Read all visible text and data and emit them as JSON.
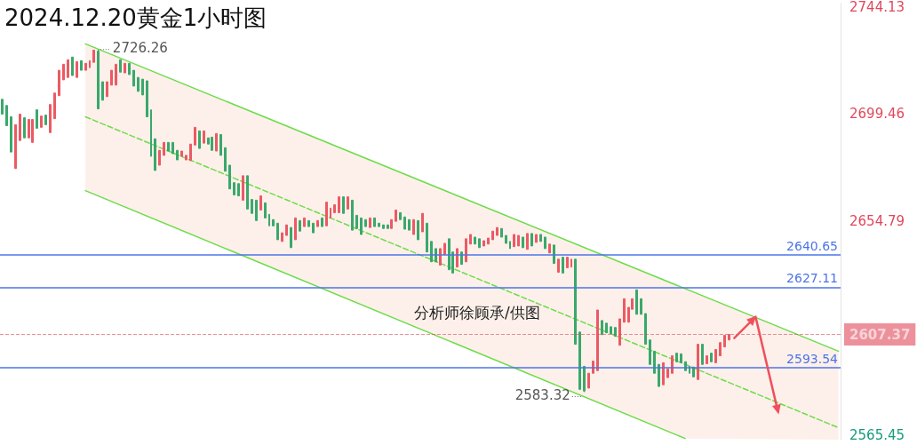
{
  "chart_data": {
    "type": "candlestick",
    "title": "2024.12.20黄金1小时图",
    "categories": [
      null,
      null,
      null,
      null,
      null,
      null,
      null,
      null,
      null,
      null,
      null,
      null,
      null,
      null,
      null,
      null,
      null,
      null,
      null,
      null,
      null,
      null,
      null,
      null,
      null,
      null,
      null,
      null,
      null,
      null,
      null,
      null,
      null,
      null,
      null,
      null,
      null,
      null,
      null,
      null,
      null,
      null,
      null,
      null,
      null,
      null,
      null,
      null,
      null,
      null,
      null,
      null,
      null,
      null,
      null,
      null,
      null,
      null,
      null,
      null,
      null,
      null,
      null,
      null,
      null,
      null,
      null,
      null,
      null,
      null,
      null,
      null,
      null,
      null,
      null,
      null,
      null,
      null,
      null,
      null,
      null,
      null,
      null,
      null,
      null,
      null,
      null,
      null,
      null,
      null,
      null,
      null,
      null,
      null,
      null,
      null,
      null,
      null,
      null,
      null,
      null,
      null,
      null,
      null,
      null,
      null,
      null,
      null,
      null,
      null,
      null,
      null,
      null,
      null,
      null,
      null,
      null,
      null,
      null,
      null,
      null,
      null,
      null,
      null,
      null,
      null,
      null,
      null,
      null,
      null,
      null,
      null,
      null,
      null,
      null,
      null,
      null,
      null,
      null,
      null,
      null,
      null,
      null,
      null,
      null,
      null,
      null,
      null,
      null,
      null,
      null,
      null,
      null,
      null,
      null,
      null,
      null,
      null,
      null,
      null,
      null,
      null,
      null,
      null,
      null,
      null,
      null,
      null,
      null,
      null,
      null,
      null,
      null,
      null,
      null,
      null,
      null,
      null,
      null,
      null,
      null,
      null,
      null,
      null,
      null,
      null,
      null,
      null,
      null,
      null,
      null,
      null
    ],
    "series": [
      {
        "ohlc": [
          [
            2705.5,
            2705.5,
            2699.3,
            2699.3
          ],
          [
            2702.9,
            2702.9,
            2694.5,
            2694.5
          ],
          [
            2698.2,
            2698.2,
            2683.5,
            2683.5
          ],
          [
            2676.6,
            2694.9,
            2676.6,
            2694.9
          ],
          [
            2688.3,
            2699.3,
            2688.3,
            2699.3
          ],
          [
            2697.8,
            2697.8,
            2689.4,
            2689.4
          ],
          [
            2689.4,
            2697.1,
            2689.4,
            2697.1
          ],
          [
            2687.5,
            2697.1,
            2687.5,
            2697.1
          ],
          [
            2701.1,
            2701.1,
            2693.4,
            2693.4
          ],
          [
            2693.8,
            2698.5,
            2693.8,
            2698.5
          ],
          [
            2698.9,
            2698.9,
            2694.9,
            2694.9
          ],
          [
            2691.6,
            2703.3,
            2691.6,
            2703.3
          ],
          [
            2697.4,
            2708.1,
            2697.4,
            2708.1
          ],
          [
            2707.0,
            2717.6,
            2707.0,
            2717.6
          ],
          [
            2713.6,
            2720.1,
            2713.6,
            2720.1
          ],
          [
            2714.6,
            2722.0,
            2714.6,
            2722.0
          ],
          [
            2723.1,
            2723.1,
            2715.4,
            2715.4
          ],
          [
            2714.6,
            2721.2,
            2714.6,
            2721.2
          ],
          [
            2721.6,
            2721.6,
            2717.6,
            2717.6
          ],
          [
            2717.6,
            2720.5,
            2717.6,
            2720.5
          ],
          [
            2718.7,
            2721.6,
            2718.7,
            2721.6
          ],
          [
            2720.9,
            2726.0,
            2720.9,
            2726.0
          ],
          [
            2725.6,
            2726.26,
            2701.5,
            2701.5
          ],
          [
            2712.8,
            2712.8,
            2705.1,
            2705.1
          ],
          [
            2706.6,
            2712.8,
            2706.6,
            2712.8
          ],
          [
            2711.4,
            2717.6,
            2711.4,
            2717.6
          ],
          [
            2711.4,
            2720.1,
            2711.4,
            2720.1
          ],
          [
            2722.0,
            2722.0,
            2716.8,
            2716.8
          ],
          [
            2716.5,
            2720.5,
            2716.5,
            2720.5
          ],
          [
            2720.5,
            2720.5,
            2715.8,
            2715.8
          ],
          [
            2717.6,
            2717.6,
            2711.0,
            2711.0
          ],
          [
            2714.6,
            2714.6,
            2708.8,
            2708.8
          ],
          [
            2713.9,
            2713.9,
            2707.3,
            2707.3
          ],
          [
            2713.2,
            2713.2,
            2698.2,
            2698.2
          ],
          [
            2701.1,
            2701.1,
            2681.7,
            2681.7
          ],
          [
            2689.0,
            2689.0,
            2675.8,
            2675.8
          ],
          [
            2678.0,
            2684.2,
            2678.0,
            2684.2
          ],
          [
            2682.1,
            2687.5,
            2682.1,
            2687.5
          ],
          [
            2687.5,
            2687.5,
            2683.9,
            2683.9
          ],
          [
            2687.5,
            2687.5,
            2682.8,
            2682.8
          ],
          [
            2684.2,
            2684.2,
            2680.2,
            2680.2
          ],
          [
            2681.7,
            2683.9,
            2681.7,
            2683.9
          ],
          [
            2680.2,
            2682.1,
            2680.2,
            2682.1
          ],
          [
            2679.9,
            2686.8,
            2679.9,
            2686.8
          ],
          [
            2686.4,
            2693.8,
            2686.4,
            2693.8
          ],
          [
            2692.3,
            2692.3,
            2685.0,
            2685.0
          ],
          [
            2687.2,
            2692.3,
            2687.2,
            2692.3
          ],
          [
            2689.4,
            2689.4,
            2686.8,
            2686.8
          ],
          [
            2689.7,
            2689.7,
            2684.2,
            2684.2
          ],
          [
            2683.9,
            2691.2,
            2683.9,
            2691.2
          ],
          [
            2690.8,
            2690.8,
            2682.1,
            2682.1
          ],
          [
            2685.3,
            2685.3,
            2675.5,
            2675.5
          ],
          [
            2678.0,
            2678.0,
            2668.1,
            2668.1
          ],
          [
            2670.7,
            2670.7,
            2665.6,
            2665.6
          ],
          [
            2670.3,
            2670.3,
            2665.2,
            2665.2
          ],
          [
            2663.4,
            2673.6,
            2663.4,
            2673.6
          ],
          [
            2673.6,
            2673.6,
            2659.7,
            2659.7
          ],
          [
            2663.7,
            2663.7,
            2657.9,
            2657.9
          ],
          [
            2663.4,
            2663.4,
            2654.9,
            2654.9
          ],
          [
            2659.3,
            2665.2,
            2659.3,
            2665.2
          ],
          [
            2662.3,
            2662.3,
            2656.0,
            2656.0
          ],
          [
            2657.5,
            2657.5,
            2652.7,
            2652.7
          ],
          [
            2655.3,
            2655.3,
            2652.7,
            2652.7
          ],
          [
            2653.8,
            2653.8,
            2646.9,
            2646.9
          ],
          [
            2646.2,
            2649.8,
            2646.2,
            2649.8
          ],
          [
            2648.7,
            2653.1,
            2648.7,
            2653.1
          ],
          [
            2652.0,
            2652.0,
            2643.6,
            2643.6
          ],
          [
            2646.9,
            2656.0,
            2646.9,
            2656.0
          ],
          [
            2654.9,
            2654.9,
            2650.5,
            2650.5
          ],
          [
            2652.4,
            2656.0,
            2652.4,
            2656.0
          ],
          [
            2654.9,
            2654.9,
            2652.4,
            2652.4
          ],
          [
            2653.8,
            2653.8,
            2649.8,
            2649.8
          ],
          [
            2652.4,
            2654.9,
            2652.4,
            2654.9
          ],
          [
            2656.0,
            2656.0,
            2652.4,
            2652.4
          ],
          [
            2652.7,
            2662.6,
            2652.7,
            2662.6
          ],
          [
            2656.0,
            2660.1,
            2656.0,
            2660.1
          ],
          [
            2658.2,
            2661.5,
            2658.2,
            2661.5
          ],
          [
            2658.2,
            2664.8,
            2658.2,
            2664.8
          ],
          [
            2664.8,
            2664.8,
            2657.9,
            2657.9
          ],
          [
            2659.7,
            2664.8,
            2659.7,
            2664.8
          ],
          [
            2663.4,
            2663.4,
            2650.9,
            2650.9
          ],
          [
            2657.1,
            2657.1,
            2651.6,
            2651.6
          ],
          [
            2656.0,
            2656.0,
            2649.1,
            2649.1
          ],
          [
            2655.3,
            2655.3,
            2652.4,
            2652.4
          ],
          [
            2652.0,
            2656.0,
            2652.0,
            2656.0
          ],
          [
            2656.0,
            2656.0,
            2652.4,
            2652.4
          ],
          [
            2653.8,
            2653.8,
            2652.4,
            2652.4
          ],
          [
            2653.1,
            2653.1,
            2651.6,
            2651.6
          ],
          [
            2653.1,
            2653.1,
            2651.6,
            2651.6
          ],
          [
            2651.6,
            2655.3,
            2651.6,
            2655.3
          ],
          [
            2654.6,
            2659.3,
            2654.6,
            2659.3
          ],
          [
            2658.2,
            2658.2,
            2655.3,
            2655.3
          ],
          [
            2656.4,
            2656.4,
            2651.3,
            2651.3
          ],
          [
            2655.3,
            2655.3,
            2650.9,
            2650.9
          ],
          [
            2649.1,
            2655.3,
            2649.1,
            2655.3
          ],
          [
            2654.9,
            2654.9,
            2646.9,
            2646.9
          ],
          [
            2650.2,
            2657.9,
            2650.2,
            2657.9
          ],
          [
            2653.8,
            2653.8,
            2641.8,
            2641.8
          ],
          [
            2646.2,
            2646.2,
            2637.7,
            2637.7
          ],
          [
            2643.2,
            2643.2,
            2637.7,
            2637.7
          ],
          [
            2636.3,
            2643.2,
            2636.3,
            2643.2
          ],
          [
            2640.7,
            2645.4,
            2640.7,
            2645.4
          ],
          [
            2647.3,
            2647.3,
            2634.4,
            2634.4
          ],
          [
            2641.8,
            2641.8,
            2633.0,
            2633.0
          ],
          [
            2635.5,
            2643.2,
            2635.5,
            2643.2
          ],
          [
            2641.8,
            2641.8,
            2636.6,
            2636.6
          ],
          [
            2637.7,
            2647.3,
            2637.7,
            2647.3
          ],
          [
            2645.1,
            2649.1,
            2645.1,
            2649.1
          ],
          [
            2648.0,
            2648.0,
            2645.1,
            2645.1
          ],
          [
            2647.3,
            2647.3,
            2643.6,
            2643.6
          ],
          [
            2644.3,
            2646.5,
            2644.3,
            2646.5
          ],
          [
            2645.1,
            2647.6,
            2645.1,
            2647.6
          ],
          [
            2646.9,
            2650.5,
            2646.9,
            2650.5
          ],
          [
            2648.7,
            2652.0,
            2648.7,
            2652.0
          ],
          [
            2651.6,
            2651.6,
            2648.0,
            2648.0
          ],
          [
            2648.7,
            2648.7,
            2645.4,
            2645.4
          ],
          [
            2646.2,
            2646.2,
            2643.2,
            2643.2
          ],
          [
            2644.0,
            2649.1,
            2644.0,
            2649.1
          ],
          [
            2644.3,
            2648.7,
            2644.3,
            2648.7
          ],
          [
            2648.0,
            2648.0,
            2643.6,
            2643.6
          ],
          [
            2642.9,
            2649.5,
            2642.9,
            2649.5
          ],
          [
            2649.5,
            2649.5,
            2644.3,
            2644.3
          ],
          [
            2645.8,
            2649.1,
            2645.8,
            2649.1
          ],
          [
            2649.1,
            2649.1,
            2646.2,
            2646.2
          ],
          [
            2648.0,
            2648.0,
            2643.2,
            2643.2
          ],
          [
            2641.4,
            2645.1,
            2641.4,
            2645.1
          ],
          [
            2644.7,
            2644.7,
            2637.0,
            2637.0
          ],
          [
            2633.3,
            2638.8,
            2633.3,
            2638.8
          ],
          [
            2639.6,
            2639.6,
            2633.0,
            2633.0
          ],
          [
            2635.2,
            2639.6,
            2635.2,
            2639.6
          ],
          [
            2635.5,
            2638.8,
            2635.5,
            2638.8
          ],
          [
            2638.8,
            2638.8,
            2603.3,
            2603.3
          ],
          [
            2608.4,
            2608.4,
            2584.5,
            2584.5
          ],
          [
            2594.1,
            2594.1,
            2583.32,
            2583.8
          ],
          [
            2585.0,
            2591.2,
            2585.0,
            2591.2
          ],
          [
            2591.2,
            2596.3,
            2591.2,
            2596.3
          ],
          [
            2592.3,
            2617.6,
            2592.3,
            2617.6
          ],
          [
            2613.2,
            2613.2,
            2607.3,
            2607.3
          ],
          [
            2612.1,
            2612.1,
            2608.1,
            2608.1
          ],
          [
            2610.6,
            2610.6,
            2607.7,
            2607.7
          ],
          [
            2610.3,
            2610.3,
            2606.6,
            2606.6
          ],
          [
            2602.9,
            2613.9,
            2602.9,
            2613.9
          ],
          [
            2612.5,
            2622.3,
            2612.5,
            2622.3
          ],
          [
            2612.5,
            2618.7,
            2612.5,
            2618.7
          ],
          [
            2617.9,
            2622.3,
            2617.9,
            2622.3
          ],
          [
            2626.0,
            2626.0,
            2615.8,
            2615.8
          ],
          [
            2622.3,
            2622.3,
            2615.8,
            2615.8
          ],
          [
            2616.1,
            2616.1,
            2603.3,
            2603.3
          ],
          [
            2605.1,
            2605.1,
            2594.9,
            2594.9
          ],
          [
            2600.4,
            2600.4,
            2591.2,
            2591.2
          ],
          [
            2594.9,
            2594.9,
            2585.7,
            2585.7
          ],
          [
            2586.4,
            2595.6,
            2586.4,
            2595.6
          ],
          [
            2589.4,
            2593.0,
            2589.4,
            2593.0
          ],
          [
            2591.2,
            2598.5,
            2591.2,
            2598.5
          ],
          [
            2599.6,
            2599.6,
            2596.0,
            2596.0
          ],
          [
            2599.3,
            2599.3,
            2595.6,
            2595.6
          ],
          [
            2596.0,
            2596.0,
            2592.3,
            2592.3
          ],
          [
            2594.1,
            2594.1,
            2591.2,
            2591.2
          ],
          [
            2593.8,
            2593.8,
            2589.7,
            2589.7
          ],
          [
            2588.6,
            2603.3,
            2588.6,
            2603.3
          ],
          [
            2603.3,
            2603.3,
            2594.9,
            2594.9
          ],
          [
            2595.2,
            2598.5,
            2595.2,
            2598.5
          ],
          [
            2599.6,
            2599.6,
            2596.0,
            2596.0
          ],
          [
            2595.6,
            2601.1,
            2595.6,
            2601.1
          ],
          [
            2598.5,
            2604.0,
            2598.5,
            2604.0
          ],
          [
            2602.2,
            2607.0,
            2602.2,
            2607.0
          ],
          [
            2605.1,
            2607.37,
            2605.1,
            2607.37
          ],
          null,
          null,
          null,
          null,
          null,
          null,
          null,
          null,
          null,
          null,
          null,
          null,
          null,
          null,
          null,
          null,
          null,
          null,
          null,
          null,
          null,
          null,
          null,
          null,
          null
        ],
        "colors": [
          "#3aa86b",
          "#3aa86b",
          "#3aa86b",
          "#eb5a64",
          "#eb5a64",
          "#3aa86b",
          "#eb5a64",
          "#eb5a64",
          "#3aa86b",
          "#eb5a64",
          "#3aa86b",
          "#eb5a64",
          "#eb5a64",
          "#eb5a64",
          "#eb5a64",
          "#eb5a64",
          "#3aa86b",
          "#eb5a64",
          "#3aa86b",
          "#eb5a64",
          "#eb5a64",
          "#eb5a64",
          "#3aa86b",
          "#3aa86b",
          "#eb5a64",
          "#eb5a64",
          "#eb5a64",
          "#3aa86b",
          "#eb5a64",
          "#3aa86b",
          "#3aa86b",
          "#3aa86b",
          "#3aa86b",
          "#3aa86b",
          "#3aa86b",
          "#3aa86b",
          "#eb5a64",
          "#eb5a64",
          "#3aa86b",
          "#3aa86b",
          "#3aa86b",
          "#eb5a64",
          "#eb5a64",
          "#eb5a64",
          "#eb5a64",
          "#3aa86b",
          "#eb5a64",
          "#3aa86b",
          "#3aa86b",
          "#eb5a64",
          "#3aa86b",
          "#3aa86b",
          "#3aa86b",
          "#3aa86b",
          "#3aa86b",
          "#eb5a64",
          "#3aa86b",
          "#3aa86b",
          "#3aa86b",
          "#eb5a64",
          "#3aa86b",
          "#3aa86b",
          "#3aa86b",
          "#3aa86b",
          "#eb5a64",
          "#eb5a64",
          "#3aa86b",
          "#eb5a64",
          "#3aa86b",
          "#eb5a64",
          "#3aa86b",
          "#3aa86b",
          "#eb5a64",
          "#3aa86b",
          "#eb5a64",
          "#eb5a64",
          "#eb5a64",
          "#eb5a64",
          "#3aa86b",
          "#eb5a64",
          "#3aa86b",
          "#3aa86b",
          "#3aa86b",
          "#3aa86b",
          "#eb5a64",
          "#3aa86b",
          "#3aa86b",
          "#3aa86b",
          "#3aa86b",
          "#eb5a64",
          "#eb5a64",
          "#3aa86b",
          "#3aa86b",
          "#3aa86b",
          "#eb5a64",
          "#3aa86b",
          "#eb5a64",
          "#3aa86b",
          "#3aa86b",
          "#3aa86b",
          "#eb5a64",
          "#eb5a64",
          "#3aa86b",
          "#3aa86b",
          "#eb5a64",
          "#3aa86b",
          "#eb5a64",
          "#eb5a64",
          "#3aa86b",
          "#3aa86b",
          "#eb5a64",
          "#eb5a64",
          "#eb5a64",
          "#eb5a64",
          "#3aa86b",
          "#3aa86b",
          "#3aa86b",
          "#eb5a64",
          "#eb5a64",
          "#3aa86b",
          "#eb5a64",
          "#3aa86b",
          "#eb5a64",
          "#3aa86b",
          "#3aa86b",
          "#eb5a64",
          "#3aa86b",
          "#eb5a64",
          "#3aa86b",
          "#eb5a64",
          "#eb5a64",
          "#3aa86b",
          "#3aa86b",
          "#3aa86b",
          "#eb5a64",
          "#eb5a64",
          "#eb5a64",
          "#3aa86b",
          "#3aa86b",
          "#3aa86b",
          "#3aa86b",
          "#eb5a64",
          "#eb5a64",
          "#eb5a64",
          "#eb5a64",
          "#3aa86b",
          "#3aa86b",
          "#3aa86b",
          "#3aa86b",
          "#3aa86b",
          "#3aa86b",
          "#eb5a64",
          "#eb5a64",
          "#eb5a64",
          "#3aa86b",
          "#3aa86b",
          "#3aa86b",
          "#3aa86b",
          "#3aa86b",
          "#eb5a64",
          "#3aa86b",
          "#eb5a64",
          "#3aa86b",
          "#eb5a64",
          "#eb5a64",
          "#eb5a64",
          "#eb5a64",
          null,
          null,
          null,
          null,
          null,
          null,
          null,
          null,
          null,
          null,
          null,
          null,
          null,
          null,
          null,
          null,
          null,
          null,
          null,
          null,
          null,
          null,
          null,
          null,
          null
        ]
      },
      {
        "type": "line",
        "color": "#6edc4a",
        "values": [
          null,
          null,
          null,
          null,
          null,
          null,
          null,
          null,
          null,
          null,
          null,
          null,
          null,
          null,
          null,
          null,
          null,
          null,
          null,
          2728.6,
          null,
          null,
          null,
          null,
          null,
          null,
          null,
          null,
          null,
          null,
          null,
          null,
          null,
          null,
          null,
          null,
          null,
          null,
          null,
          null,
          null,
          null,
          null,
          null,
          null,
          null,
          null,
          null,
          null,
          null,
          null,
          null,
          null,
          null,
          null,
          null,
          null,
          null,
          null,
          null,
          null,
          null,
          null,
          null,
          null,
          null,
          null,
          null,
          null,
          null,
          null,
          null,
          null,
          null,
          null,
          null,
          null,
          null,
          null,
          null,
          null,
          null,
          null,
          null,
          null,
          null,
          null,
          null,
          null,
          null,
          null,
          null,
          null,
          null,
          null,
          null,
          null,
          null,
          null,
          null,
          null,
          null,
          null,
          null,
          null,
          null,
          null,
          null,
          null,
          null,
          null,
          null,
          null,
          null,
          null,
          null,
          null,
          null,
          null,
          null,
          null,
          null,
          null,
          null,
          null,
          null,
          null,
          null,
          null,
          null,
          null,
          null,
          null,
          null,
          null,
          null,
          null,
          null,
          null,
          null,
          null,
          null,
          null,
          null,
          null,
          null,
          null,
          null,
          null,
          null,
          null,
          null,
          null,
          null,
          null,
          null,
          null,
          null,
          null,
          null,
          null,
          null,
          null,
          null,
          null,
          null,
          null,
          null,
          null,
          null,
          null,
          null,
          null,
          null,
          null,
          null,
          null,
          null,
          null,
          null,
          null,
          null,
          null,
          null,
          null,
          null,
          null,
          null,
          null,
          null,
          null,
          2600.4
        ]
      },
      {
        "type": "line",
        "color": "#6edc4a",
        "line_style": "dashed",
        "values": [
          null,
          null,
          null,
          null,
          null,
          null,
          null,
          null,
          null,
          null,
          null,
          null,
          null,
          null,
          null,
          null,
          null,
          null,
          null,
          2698.2,
          null,
          null,
          null,
          null,
          null,
          null,
          null,
          null,
          null,
          null,
          null,
          null,
          null,
          null,
          null,
          null,
          null,
          null,
          null,
          null,
          null,
          null,
          null,
          null,
          null,
          null,
          null,
          null,
          null,
          null,
          null,
          null,
          null,
          null,
          null,
          null,
          null,
          null,
          null,
          null,
          null,
          null,
          null,
          null,
          null,
          null,
          null,
          null,
          null,
          null,
          null,
          null,
          null,
          null,
          null,
          null,
          null,
          null,
          null,
          null,
          null,
          null,
          null,
          null,
          null,
          null,
          null,
          null,
          null,
          null,
          null,
          null,
          null,
          null,
          null,
          null,
          null,
          null,
          null,
          null,
          null,
          null,
          null,
          null,
          null,
          null,
          null,
          null,
          null,
          null,
          null,
          null,
          null,
          null,
          null,
          null,
          null,
          null,
          null,
          null,
          null,
          null,
          null,
          null,
          null,
          null,
          null,
          null,
          null,
          null,
          null,
          null,
          null,
          null,
          null,
          null,
          null,
          null,
          null,
          null,
          null,
          null,
          null,
          null,
          null,
          null,
          null,
          null,
          null,
          null,
          null,
          null,
          null,
          null,
          null,
          null,
          null,
          null,
          null,
          null,
          null,
          null,
          null,
          null,
          null,
          null,
          null,
          null,
          null,
          null,
          null,
          null,
          null,
          null,
          null,
          null,
          null,
          null,
          null,
          null,
          null,
          null,
          null,
          null,
          null,
          null,
          null,
          null,
          null,
          null,
          null,
          2568.5
        ]
      },
      {
        "type": "line",
        "color": "#6edc4a",
        "values": [
          null,
          null,
          null,
          null,
          null,
          null,
          null,
          null,
          null,
          null,
          null,
          null,
          null,
          null,
          null,
          null,
          null,
          null,
          null,
          2667.4,
          null,
          null,
          null,
          null,
          null,
          null,
          null,
          null,
          null,
          null,
          null,
          null,
          null,
          null,
          null,
          null,
          null,
          null,
          null,
          null,
          null,
          null,
          null,
          null,
          null,
          null,
          null,
          null,
          null,
          null,
          null,
          null,
          null,
          null,
          null,
          null,
          null,
          null,
          null,
          null,
          null,
          null,
          null,
          null,
          null,
          null,
          null,
          null,
          null,
          null,
          null,
          null,
          null,
          null,
          null,
          null,
          null,
          null,
          null,
          null,
          null,
          null,
          null,
          null,
          null,
          null,
          null,
          null,
          null,
          null,
          null,
          null,
          null,
          null,
          null,
          null,
          null,
          null,
          null,
          null,
          null,
          null,
          null,
          null,
          null,
          null,
          null,
          null,
          null,
          null,
          null,
          null,
          null,
          null,
          null,
          null,
          null,
          null,
          null,
          null,
          null,
          null,
          null,
          null,
          null,
          null,
          null,
          null,
          null,
          null,
          null,
          null,
          null,
          null,
          null,
          null,
          null,
          null,
          null,
          null,
          null,
          null,
          null,
          null,
          null,
          null,
          null,
          null,
          null,
          null,
          null,
          null,
          null,
          null,
          null,
          null,
          2564.0,
          null,
          null,
          null,
          null,
          null,
          null,
          null,
          null,
          null,
          null,
          null,
          null,
          null,
          null,
          null,
          null,
          null,
          null,
          null,
          null,
          null,
          null,
          null,
          null,
          null,
          null,
          null,
          null,
          null,
          null,
          null,
          null,
          null,
          null,
          null
        ]
      }
    ],
    "ylim": [
      2563.5,
      2745.5
    ],
    "yticks": [
      2744.13,
      2699.46,
      2654.79,
      2565.45
    ],
    "tick_labels": "y",
    "grid": false,
    "ref_lines": [
      {
        "axis": "y",
        "value": 2640.65,
        "label": "2640.65",
        "color": "#4d74e6"
      },
      {
        "axis": "y",
        "value": 2627.11,
        "label": "2627.11",
        "color": "#4d74e6"
      },
      {
        "axis": "y",
        "value": 2593.54,
        "label": "2593.54",
        "color": "#4d74e6"
      },
      {
        "axis": "y",
        "value": 2607.37,
        "label": "2607.37",
        "color": "#e0475a",
        "line_style": "dashed"
      }
    ],
    "annotations": [
      "2726.26",
      "2583.32",
      "分析师徐顾承/供图"
    ]
  }
}
